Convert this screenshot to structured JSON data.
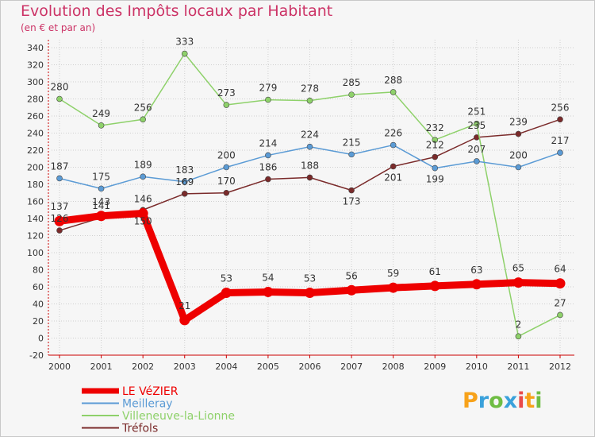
{
  "title": "Evolution des Impôts locaux par Habitant",
  "subtitle": "(en € et par an)",
  "logo": {
    "letters": [
      "P",
      "r",
      "o",
      "x",
      "i",
      "t",
      "i"
    ],
    "colors": [
      "#f7a21a",
      "#3aa1db",
      "#6fbd44",
      "#3aa1db",
      "#e94a4a",
      "#f7a21a",
      "#6fbd44"
    ]
  },
  "chart_data": {
    "type": "line",
    "x": [
      "2000",
      "2001",
      "2002",
      "2003",
      "2004",
      "2005",
      "2006",
      "2007",
      "2008",
      "2009",
      "2010",
      "2011",
      "2012"
    ],
    "ylim": [
      -20,
      340
    ],
    "yticks": [
      -20,
      0,
      20,
      40,
      60,
      80,
      100,
      120,
      140,
      160,
      180,
      200,
      220,
      240,
      260,
      280,
      300,
      320,
      340
    ],
    "grid": true,
    "legend_position": "bottom-left",
    "series": [
      {
        "name": "LE VéZIER",
        "color": "#ee0000",
        "values": [
          137,
          143,
          146,
          21,
          53,
          54,
          53,
          56,
          59,
          61,
          63,
          65,
          64
        ]
      },
      {
        "name": "Meilleray",
        "color": "#5b9bd5",
        "values": [
          187,
          175,
          189,
          183,
          200,
          214,
          224,
          215,
          226,
          199,
          207,
          200,
          217
        ]
      },
      {
        "name": "Villeneuve-la-Lionne",
        "color": "#8ed16a",
        "values": [
          280,
          249,
          256,
          333,
          273,
          279,
          278,
          285,
          288,
          232,
          251,
          2,
          27
        ]
      },
      {
        "name": "Tréfols",
        "color": "#7a2a2a",
        "values": [
          126,
          141,
          150,
          169,
          170,
          186,
          188,
          173,
          201,
          212,
          235,
          239,
          256
        ]
      }
    ]
  }
}
